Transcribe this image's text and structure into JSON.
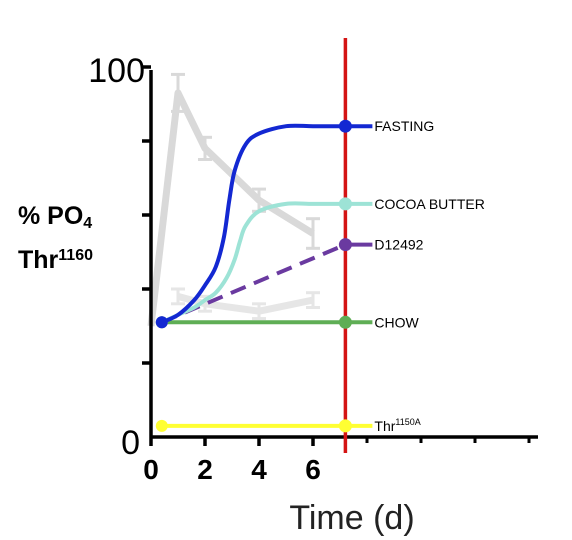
{
  "chart_data": {
    "type": "line",
    "ylabel": {
      "line1": "% PO",
      "line1_sub": "4",
      "line2": "Thr",
      "line2_sup": "1160"
    },
    "xlabel": "Time (d)",
    "ylim": [
      0,
      100
    ],
    "y_end_labels": [
      "0",
      "100"
    ],
    "xlim": [
      0,
      14
    ],
    "x_ticks": [
      "0",
      "2",
      "4",
      "6"
    ],
    "x_tick_values": [
      0,
      2,
      4,
      6
    ],
    "marker_line_x": 7.2,
    "series": [
      {
        "name": "FASTING",
        "color": "#1328d2",
        "style": "solid",
        "x": [
          0.4,
          1,
          1.6,
          2,
          2.4,
          2.7,
          2.9,
          3.1,
          3.5,
          4,
          5,
          6,
          7.2
        ],
        "y": [
          31,
          33,
          37,
          41,
          46,
          54,
          64,
          72,
          79,
          82,
          84,
          84,
          84
        ]
      },
      {
        "name": "COCOA BUTTER",
        "color": "#9de3d6",
        "style": "solid",
        "x": [
          0.4,
          1,
          1.6,
          2,
          2.4,
          2.8,
          3.1,
          3.3,
          3.5,
          4,
          5,
          6,
          7.2
        ],
        "y": [
          31,
          33,
          35,
          37,
          39,
          43,
          48,
          53,
          57,
          61,
          63,
          63,
          63
        ]
      },
      {
        "name": "D12492",
        "color": "#6a3aa0",
        "style": "dashed",
        "x": [
          0.4,
          7.2
        ],
        "y": [
          31,
          52
        ]
      },
      {
        "name": "CHOW",
        "color": "#5fae55",
        "style": "solid",
        "x": [
          0.4,
          7.2
        ],
        "y": [
          31,
          31
        ]
      },
      {
        "name": "Thr",
        "name_sup": "1150A",
        "color": "#ffff33",
        "style": "solid",
        "x": [
          0.4,
          7.2
        ],
        "y": [
          3,
          3
        ]
      }
    ],
    "background_series": [
      {
        "color": "#d9d9d9",
        "x": [
          0,
          1,
          2,
          4,
          6
        ],
        "y": [
          30,
          93,
          78,
          64,
          55
        ],
        "err": [
          0,
          5,
          3,
          3,
          4
        ]
      },
      {
        "color": "#e6e6e6",
        "x": [
          1,
          2,
          4,
          6
        ],
        "y": [
          38,
          36,
          34,
          37
        ],
        "err": [
          2,
          2,
          2,
          2
        ]
      }
    ]
  }
}
